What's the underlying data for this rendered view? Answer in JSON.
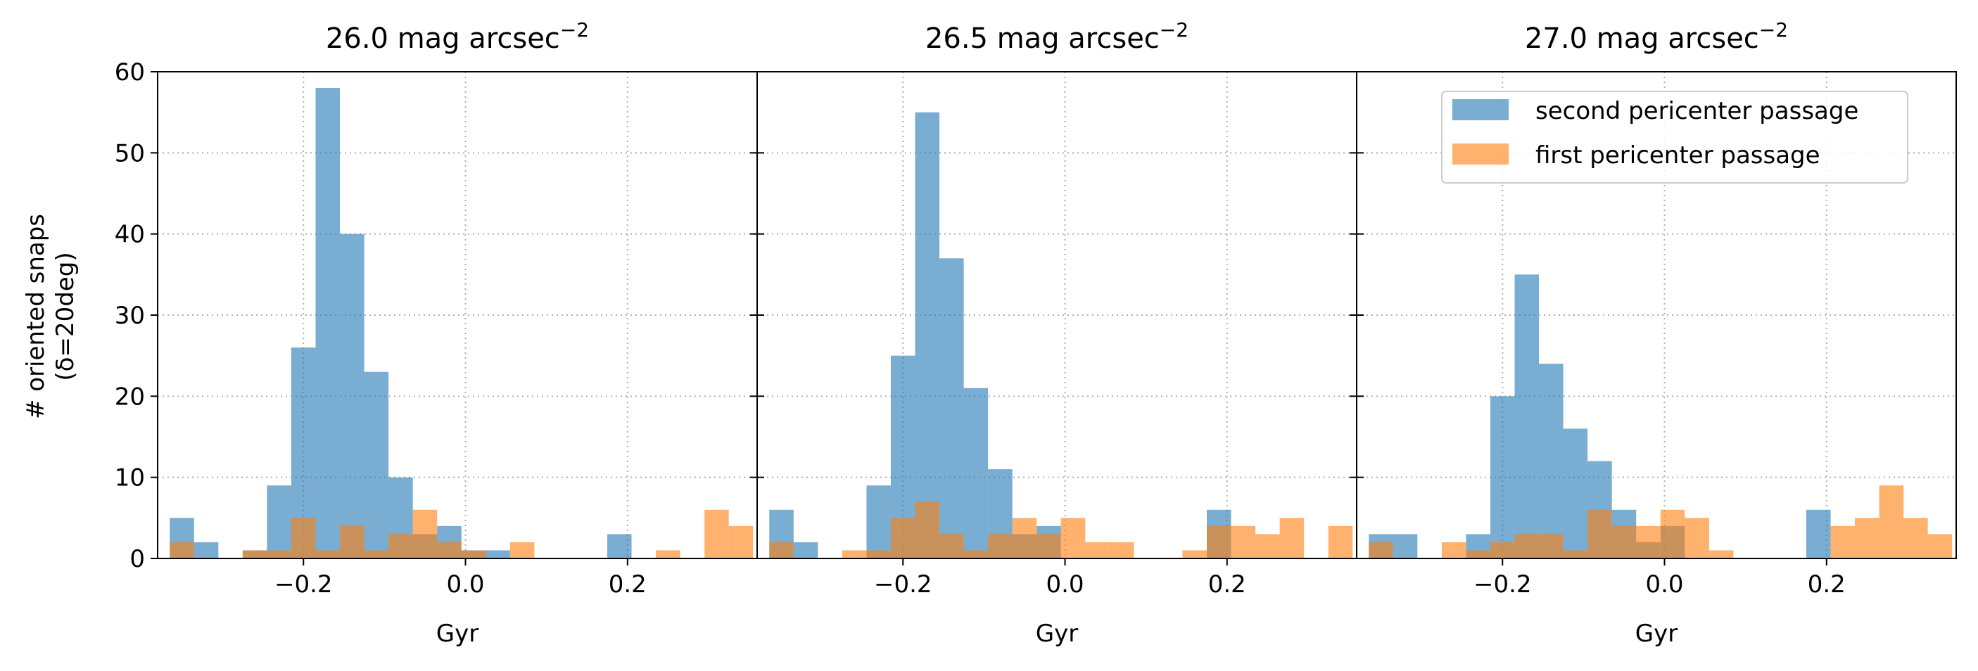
{
  "figure": {
    "ylabel": "# oriented snaps",
    "ylabel2": "(δ=20deg)",
    "bin_width": 0.03,
    "colors": {
      "second": "#1f77b4",
      "first": "#ff7f0e"
    },
    "legend": {
      "placement": "upper-right of third panel",
      "entries": [
        "second pericenter passage",
        "first pericenter passage"
      ]
    }
  },
  "chart_data": [
    {
      "type": "bar",
      "title": "26.0 mag arcsec",
      "title_sup": "−2",
      "xlabel": "Gyr",
      "ylabel": "# oriented snaps (δ=20deg)",
      "xlim": [
        -0.38,
        0.36
      ],
      "ylim": [
        0,
        60
      ],
      "xticks": [
        -0.2,
        0.0,
        0.2
      ],
      "xtick_labels": [
        "−0.2",
        "0.0",
        "0.2"
      ],
      "yticks": [
        0,
        10,
        20,
        30,
        40,
        50,
        60
      ],
      "grid": true,
      "series": [
        {
          "name": "second pericenter passage",
          "bins": [
            [
              -0.35,
              5
            ],
            [
              -0.32,
              2
            ],
            [
              -0.26,
              1
            ],
            [
              -0.23,
              9
            ],
            [
              -0.2,
              26
            ],
            [
              -0.17,
              58
            ],
            [
              -0.14,
              40
            ],
            [
              -0.11,
              23
            ],
            [
              -0.08,
              10
            ],
            [
              -0.05,
              3
            ],
            [
              -0.02,
              4
            ],
            [
              0.01,
              1
            ],
            [
              0.04,
              1
            ],
            [
              0.19,
              3
            ]
          ]
        },
        {
          "name": "first pericenter passage",
          "bins": [
            [
              -0.35,
              2
            ],
            [
              -0.26,
              1
            ],
            [
              -0.23,
              1
            ],
            [
              -0.2,
              5
            ],
            [
              -0.17,
              1
            ],
            [
              -0.14,
              4
            ],
            [
              -0.11,
              1
            ],
            [
              -0.08,
              3
            ],
            [
              -0.05,
              6
            ],
            [
              -0.02,
              2
            ],
            [
              0.01,
              1
            ],
            [
              0.07,
              2
            ],
            [
              0.25,
              1
            ],
            [
              0.31,
              6
            ],
            [
              0.34,
              4
            ]
          ]
        }
      ]
    },
    {
      "type": "bar",
      "title": "26.5 mag arcsec",
      "title_sup": "−2",
      "xlabel": "Gyr",
      "xlim": [
        -0.38,
        0.36
      ],
      "ylim": [
        0,
        60
      ],
      "xticks": [
        -0.2,
        0.0,
        0.2
      ],
      "xtick_labels": [
        "−0.2",
        "0.0",
        "0.2"
      ],
      "grid": true,
      "series": [
        {
          "name": "second pericenter passage",
          "bins": [
            [
              -0.35,
              6
            ],
            [
              -0.32,
              2
            ],
            [
              -0.23,
              9
            ],
            [
              -0.2,
              25
            ],
            [
              -0.17,
              55
            ],
            [
              -0.14,
              37
            ],
            [
              -0.11,
              21
            ],
            [
              -0.08,
              11
            ],
            [
              -0.05,
              3
            ],
            [
              -0.02,
              4
            ],
            [
              0.19,
              6
            ]
          ]
        },
        {
          "name": "first pericenter passage",
          "bins": [
            [
              -0.35,
              2
            ],
            [
              -0.26,
              1
            ],
            [
              -0.23,
              1
            ],
            [
              -0.2,
              5
            ],
            [
              -0.17,
              7
            ],
            [
              -0.14,
              3
            ],
            [
              -0.11,
              1
            ],
            [
              -0.08,
              3
            ],
            [
              -0.05,
              5
            ],
            [
              -0.02,
              3
            ],
            [
              0.01,
              5
            ],
            [
              0.04,
              2
            ],
            [
              0.07,
              2
            ],
            [
              0.16,
              1
            ],
            [
              0.19,
              4
            ],
            [
              0.22,
              4
            ],
            [
              0.25,
              3
            ],
            [
              0.28,
              5
            ],
            [
              0.34,
              4
            ]
          ]
        }
      ]
    },
    {
      "type": "bar",
      "title": "27.0 mag arcsec",
      "title_sup": "−2",
      "xlabel": "Gyr",
      "xlim": [
        -0.38,
        0.36
      ],
      "ylim": [
        0,
        60
      ],
      "xticks": [
        -0.2,
        0.0,
        0.2
      ],
      "xtick_labels": [
        "−0.2",
        "0.0",
        "0.2"
      ],
      "grid": true,
      "series": [
        {
          "name": "second pericenter passage",
          "bins": [
            [
              -0.35,
              3
            ],
            [
              -0.32,
              3
            ],
            [
              -0.23,
              3
            ],
            [
              -0.2,
              20
            ],
            [
              -0.17,
              35
            ],
            [
              -0.14,
              24
            ],
            [
              -0.11,
              16
            ],
            [
              -0.08,
              12
            ],
            [
              -0.05,
              6
            ],
            [
              -0.02,
              2
            ],
            [
              0.01,
              4
            ],
            [
              0.19,
              6
            ]
          ]
        },
        {
          "name": "first pericenter passage",
          "bins": [
            [
              -0.35,
              2
            ],
            [
              -0.26,
              2
            ],
            [
              -0.23,
              1
            ],
            [
              -0.2,
              2
            ],
            [
              -0.17,
              3
            ],
            [
              -0.14,
              3
            ],
            [
              -0.11,
              1
            ],
            [
              -0.08,
              6
            ],
            [
              -0.05,
              4
            ],
            [
              -0.02,
              4
            ],
            [
              0.01,
              6
            ],
            [
              0.04,
              5
            ],
            [
              0.07,
              1
            ],
            [
              0.22,
              4
            ],
            [
              0.25,
              5
            ],
            [
              0.28,
              9
            ],
            [
              0.31,
              5
            ],
            [
              0.34,
              3
            ]
          ]
        }
      ]
    }
  ]
}
